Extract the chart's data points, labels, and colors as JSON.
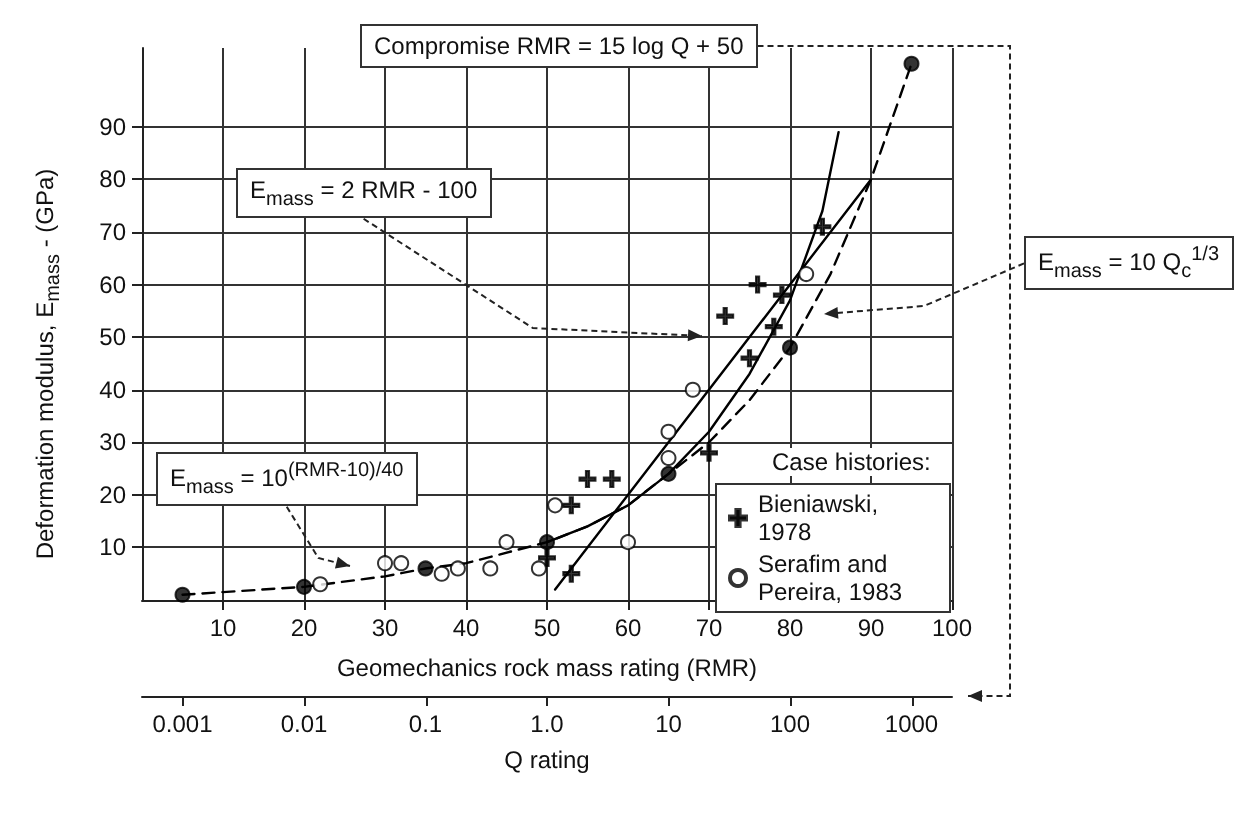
{
  "chart_data": {
    "type": "scatter",
    "xlabel": "Geomechanics rock mass rating (RMR)",
    "ylabel": "Deformation modulus, E$_{mass}$ - (GPa)",
    "x2label": "Q rating",
    "xlim": [
      0,
      100
    ],
    "xticks": [
      10,
      20,
      30,
      40,
      50,
      60,
      70,
      80,
      90,
      100
    ],
    "ylim": [
      0,
      105
    ],
    "yticks": [
      10,
      20,
      30,
      40,
      50,
      60,
      70,
      80,
      90
    ],
    "x2lim": [
      0.000464,
      2154
    ],
    "x2ticks": [
      0.001,
      0.01,
      0.1,
      {
        "value": 1,
        "label": "1.0"
      },
      10,
      100,
      1000
    ],
    "log": "x2",
    "grid": true,
    "legend": "bottom right",
    "legend_title": "Case histories:",
    "annotations": [
      "Compromise RMR = 15 log Q + 50",
      "E$_{mass}$ = 2 RMR - 100",
      "E$_{mass}$ = 10 Q$_{c}$$^{1/3}$",
      "E$_{mass}$ = 10$^{(RMR-10)/40}$"
    ],
    "series": [
      {
        "type": "line",
        "color": "#000000",
        "line_style": "dashed",
        "marker": "none",
        "x": [
          5,
          10,
          20,
          30,
          35,
          40,
          50,
          55,
          60,
          65,
          70,
          75,
          80,
          85,
          90,
          95
        ],
        "values": [
          1,
          1.5,
          2.5,
          4.5,
          6,
          7,
          11,
          14,
          18,
          24,
          30,
          38,
          48,
          62,
          80,
          102
        ]
      },
      {
        "type": "line",
        "color": "#000000",
        "line_style": "solid",
        "marker": "none",
        "x": [
          50,
          55,
          60,
          65,
          70,
          75,
          80,
          84,
          86
        ],
        "values": [
          11,
          14,
          18,
          24,
          32,
          43,
          57,
          74,
          89
        ]
      },
      {
        "type": "line",
        "color": "#000000",
        "line_style": "solid",
        "marker": "none",
        "x": [
          51,
          90
        ],
        "values": [
          2,
          80
        ]
      },
      {
        "color": "#000000",
        "marker": "circle",
        "x": [
          5,
          20,
          35,
          50,
          65,
          80,
          95
        ],
        "values": [
          1,
          2.5,
          6,
          11,
          24,
          48,
          102
        ]
      },
      {
        "name": "Bieniawski, 1978",
        "color": "#000000",
        "marker": "cross",
        "x": [
          50,
          53,
          53,
          55,
          58,
          70,
          75,
          72,
          78,
          76,
          79,
          84
        ],
        "values": [
          8,
          5,
          18,
          23,
          23,
          28,
          46,
          54,
          52,
          60,
          58,
          71
        ]
      },
      {
        "name": "Serafim and Pereira, 1983",
        "color": "#ffffff",
        "marker": "circle",
        "x": [
          22,
          30,
          32,
          37,
          39,
          43,
          45,
          49,
          51,
          60,
          65,
          65,
          68,
          82
        ],
        "values": [
          3,
          7,
          7,
          5,
          6,
          6,
          11,
          6,
          18,
          11,
          27,
          32,
          40,
          62
        ]
      }
    ]
  }
}
